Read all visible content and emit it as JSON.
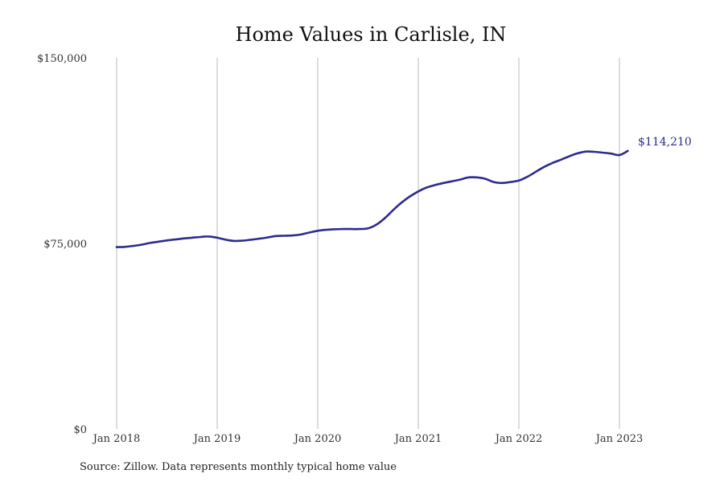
{
  "chart_data": {
    "type": "line",
    "title": "Home Values in Carlisle, IN",
    "xlabel": "",
    "ylabel": "",
    "x_range": [
      "2018-01",
      "2023-01"
    ],
    "x_ticks": [
      {
        "x": "2018-01",
        "label": "Jan 2018"
      },
      {
        "x": "2019-01",
        "label": "Jan 2019"
      },
      {
        "x": "2020-01",
        "label": "Jan 2020"
      },
      {
        "x": "2021-01",
        "label": "Jan 2021"
      },
      {
        "x": "2022-01",
        "label": "Jan 2022"
      },
      {
        "x": "2023-01",
        "label": "Jan 2023"
      }
    ],
    "y_ticks": [
      {
        "value": 0,
        "label": "$0"
      },
      {
        "value": 75000,
        "label": "$75,000"
      },
      {
        "value": 150000,
        "label": "$150,000"
      }
    ],
    "ylim": [
      0,
      150000
    ],
    "grid": "vertical lines at each January",
    "legend": "none",
    "end_label": "$114,210",
    "colors": {
      "line": "#2e2b8f",
      "grid": "#bbbbbb"
    },
    "series": [
      {
        "x": [
          "2018-01",
          "2018-02",
          "2018-03",
          "2018-04",
          "2018-05",
          "2018-06",
          "2018-07",
          "2018-08",
          "2018-09",
          "2018-10",
          "2018-11",
          "2018-12",
          "2019-01",
          "2019-02",
          "2019-03",
          "2019-04",
          "2019-05",
          "2019-06",
          "2019-07",
          "2019-08",
          "2019-09",
          "2019-10",
          "2019-11",
          "2019-12",
          "2020-01",
          "2020-02",
          "2020-03",
          "2020-04",
          "2020-05",
          "2020-06",
          "2020-07",
          "2020-08",
          "2020-09",
          "2020-10",
          "2020-11",
          "2020-12",
          "2021-01",
          "2021-02",
          "2021-03",
          "2021-04",
          "2021-05",
          "2021-06",
          "2021-07",
          "2021-08",
          "2021-09",
          "2021-10",
          "2021-11",
          "2021-12",
          "2022-01",
          "2022-02",
          "2022-03",
          "2022-04",
          "2022-05",
          "2022-06",
          "2022-07",
          "2022-08",
          "2022-09",
          "2022-10",
          "2022-11",
          "2022-12",
          "2023-01",
          "2023-02"
        ],
        "values": [
          73500,
          73600,
          74000,
          74500,
          75200,
          75700,
          76200,
          76600,
          77000,
          77300,
          77600,
          77800,
          77300,
          76500,
          76000,
          76100,
          76500,
          76900,
          77400,
          78000,
          78100,
          78200,
          78600,
          79400,
          80100,
          80500,
          80700,
          80800,
          80800,
          80800,
          81100,
          82600,
          85200,
          88500,
          91500,
          94000,
          96000,
          97600,
          98600,
          99400,
          100100,
          100800,
          101700,
          101700,
          101100,
          99800,
          99400,
          99800,
          100400,
          101900,
          103900,
          105900,
          107500,
          108800,
          110200,
          111400,
          112100,
          112000,
          111700,
          111300,
          110700,
          114210
        ]
      }
    ]
  },
  "source": "Source: Zillow. Data represents monthly typical home value"
}
